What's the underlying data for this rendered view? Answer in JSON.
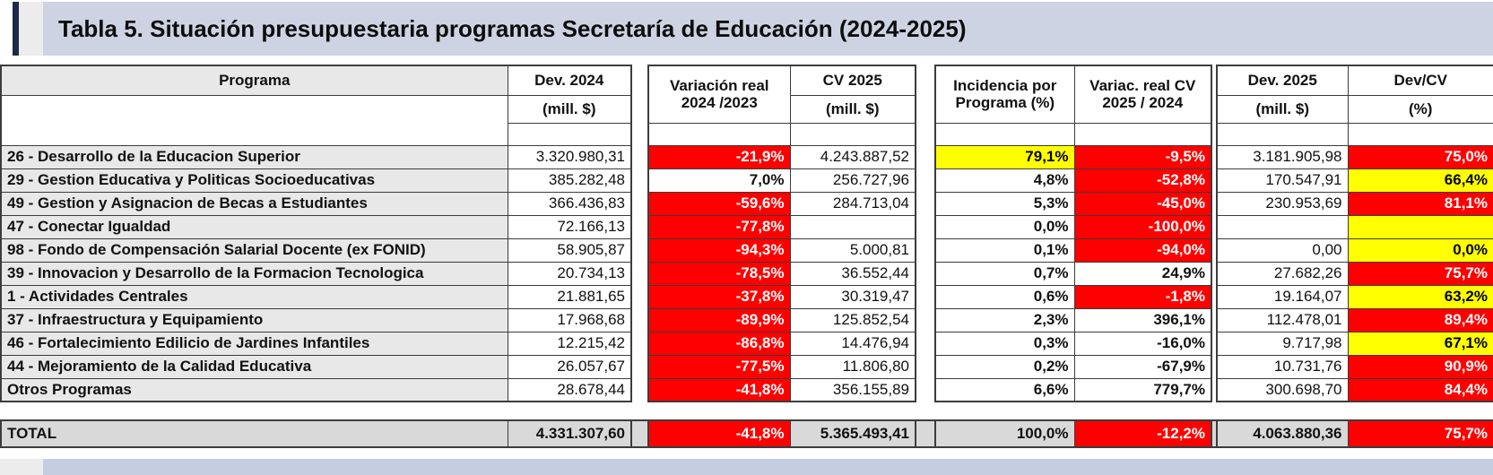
{
  "title": "Tabla 5. Situación presupuestaria programas Secretaría de Educación (2024-2025)",
  "colors": {
    "negative_bg": "#ff0000",
    "negative_text": "#ffffff",
    "warning_bg": "#ffff00",
    "warning_text": "#000000",
    "program_col_bg": "#e8e8e8",
    "total_row_bg": "#d9d9d9",
    "title_band_bg": "#cdd3e3",
    "bottom_bar_bg": "#c4cee0",
    "accent_bar": "#1c2b4a",
    "side_strip": "#ececec",
    "grid_line": "#3c3c3c"
  },
  "table": {
    "headers": {
      "programa": "Programa",
      "dev2024": {
        "l1": "Dev. 2024",
        "l2": "(mill. $)"
      },
      "variacion": {
        "l1": "Variación real",
        "l2": "2024 /2023"
      },
      "cv2025": {
        "l1": "CV 2025",
        "l2": "(mill. $)"
      },
      "incidencia": {
        "l1": "Incidencia por",
        "l2": "Programa (%)"
      },
      "variac_cv": {
        "l1": "Variac. real CV",
        "l2": "2025 / 2024"
      },
      "dev2025": {
        "l1": "Dev. 2025",
        "l2": "(mill. $)"
      },
      "devcv": {
        "l1": "Dev/CV",
        "l2": "(%)"
      }
    },
    "rows": [
      {
        "programa": "26 - Desarrollo de la Educacion Superior",
        "dev2024": "3.320.980,31",
        "variacion": "-21,9%",
        "variacion_bg": "red",
        "cv2025": "4.243.887,52",
        "incidencia": "79,1%",
        "incidencia_bg": "yellow",
        "variac_cv": "-9,5%",
        "variac_cv_bg": "red",
        "dev2025": "3.181.905,98",
        "devcv": "75,0%",
        "devcv_bg": "red"
      },
      {
        "programa": "29 - Gestion Educativa y Politicas Socioeducativas",
        "dev2024": "385.282,48",
        "variacion": "7,0%",
        "variacion_bg": "white",
        "cv2025": "256.727,96",
        "incidencia": "4,8%",
        "incidencia_bg": "white",
        "variac_cv": "-52,8%",
        "variac_cv_bg": "red",
        "dev2025": "170.547,91",
        "devcv": "66,4%",
        "devcv_bg": "yellow"
      },
      {
        "programa": "49 - Gestion y Asignacion de Becas a Estudiantes",
        "dev2024": "366.436,83",
        "variacion": "-59,6%",
        "variacion_bg": "red",
        "cv2025": "284.713,04",
        "incidencia": "5,3%",
        "incidencia_bg": "white",
        "variac_cv": "-45,0%",
        "variac_cv_bg": "red",
        "dev2025": "230.953,69",
        "devcv": "81,1%",
        "devcv_bg": "red"
      },
      {
        "programa": "47 - Conectar Igualdad",
        "dev2024": "72.166,13",
        "variacion": "-77,8%",
        "variacion_bg": "red",
        "cv2025": "",
        "incidencia": "0,0%",
        "incidencia_bg": "white",
        "variac_cv": "-100,0%",
        "variac_cv_bg": "red",
        "dev2025": "",
        "devcv": "",
        "devcv_bg": "yellow"
      },
      {
        "programa": "98 - Fondo de Compensación Salarial Docente (ex FONID)",
        "dev2024": "58.905,87",
        "variacion": "-94,3%",
        "variacion_bg": "red",
        "cv2025": "5.000,81",
        "incidencia": "0,1%",
        "incidencia_bg": "white",
        "variac_cv": "-94,0%",
        "variac_cv_bg": "red",
        "dev2025": "0,00",
        "devcv": "0,0%",
        "devcv_bg": "yellow"
      },
      {
        "programa": "39 - Innovacion y Desarrollo de la Formacion Tecnologica",
        "dev2024": "20.734,13",
        "variacion": "-78,5%",
        "variacion_bg": "red",
        "cv2025": "36.552,44",
        "incidencia": "0,7%",
        "incidencia_bg": "white",
        "variac_cv": "24,9%",
        "variac_cv_bg": "white",
        "dev2025": "27.682,26",
        "devcv": "75,7%",
        "devcv_bg": "red"
      },
      {
        "programa": "1 - Actividades Centrales",
        "dev2024": "21.881,65",
        "variacion": "-37,8%",
        "variacion_bg": "red",
        "cv2025": "30.319,47",
        "incidencia": "0,6%",
        "incidencia_bg": "white",
        "variac_cv": "-1,8%",
        "variac_cv_bg": "red",
        "dev2025": "19.164,07",
        "devcv": "63,2%",
        "devcv_bg": "yellow"
      },
      {
        "programa": "37 - Infraestructura y Equipamiento",
        "dev2024": "17.968,68",
        "variacion": "-89,9%",
        "variacion_bg": "red",
        "cv2025": "125.852,54",
        "incidencia": "2,3%",
        "incidencia_bg": "white",
        "variac_cv": "396,1%",
        "variac_cv_bg": "white",
        "dev2025": "112.478,01",
        "devcv": "89,4%",
        "devcv_bg": "red"
      },
      {
        "programa": "46 - Fortalecimiento Edilicio de Jardines Infantiles",
        "dev2024": "12.215,42",
        "variacion": "-86,8%",
        "variacion_bg": "red",
        "cv2025": "14.476,94",
        "incidencia": "0,3%",
        "incidencia_bg": "white",
        "variac_cv": "-16,0%",
        "variac_cv_bg": "white",
        "dev2025": "9.717,98",
        "devcv": "67,1%",
        "devcv_bg": "yellow"
      },
      {
        "programa": "44 - Mejoramiento de la Calidad Educativa",
        "dev2024": "26.057,67",
        "variacion": "-77,5%",
        "variacion_bg": "red",
        "cv2025": "11.806,80",
        "incidencia": "0,2%",
        "incidencia_bg": "white",
        "variac_cv": "-67,9%",
        "variac_cv_bg": "white",
        "dev2025": "10.731,76",
        "devcv": "90,9%",
        "devcv_bg": "red"
      },
      {
        "programa": "Otros Programas",
        "dev2024": "28.678,44",
        "variacion": "-41,8%",
        "variacion_bg": "red",
        "cv2025": "356.155,89",
        "incidencia": "6,6%",
        "incidencia_bg": "white",
        "variac_cv": "779,7%",
        "variac_cv_bg": "white",
        "dev2025": "300.698,70",
        "devcv": "84,4%",
        "devcv_bg": "red"
      }
    ],
    "total": {
      "programa": "TOTAL",
      "dev2024": "4.331.307,60",
      "variacion": "-41,8%",
      "variacion_bg": "red",
      "cv2025": "5.365.493,41",
      "incidencia": "100,0%",
      "incidencia_bg": "gray",
      "variac_cv": "-12,2%",
      "variac_cv_bg": "red",
      "dev2025": "4.063.880,36",
      "devcv": "75,7%",
      "devcv_bg": "red"
    }
  }
}
